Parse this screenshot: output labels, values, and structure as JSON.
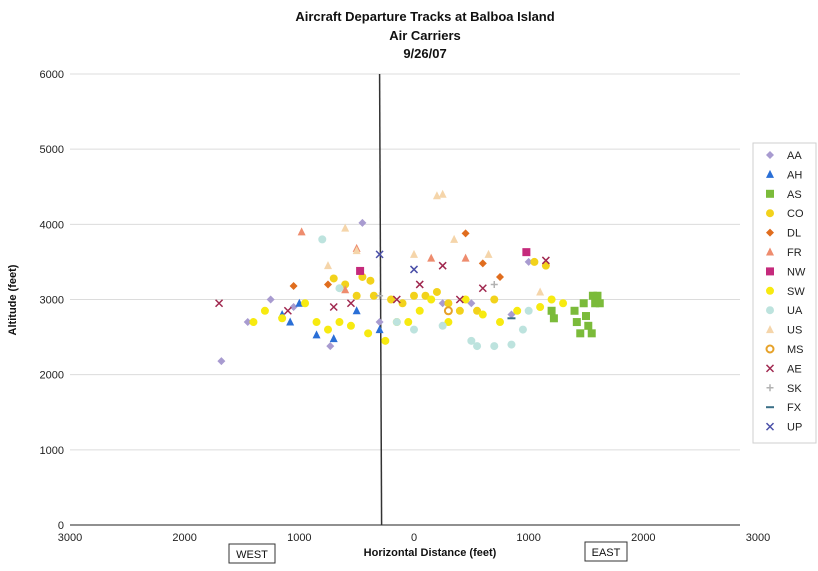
{
  "chart_data": {
    "type": "scatter",
    "title": "Aircraft Departure Tracks at Balboa Island",
    "subtitle": "Air Carriers",
    "date": "9/26/07",
    "xlabel": "Horizontal Distance (feet)",
    "ylabel": "Altitude (feet)",
    "xlim": [
      -3000,
      3000
    ],
    "ylim": [
      0,
      6000
    ],
    "x_ticks": [
      -3000,
      -2000,
      -1000,
      0,
      1000,
      2000,
      3000
    ],
    "x_tick_labels": [
      "3000",
      "2000",
      "1000",
      "0",
      "1000",
      "2000",
      "3000"
    ],
    "y_ticks": [
      0,
      1000,
      2000,
      3000,
      4000,
      5000,
      6000
    ],
    "y_tick_labels": [
      "0",
      "1000",
      "2000",
      "3000",
      "4000",
      "5000",
      "6000"
    ],
    "west_label": "WEST",
    "east_label": "EAST",
    "grid": "horizontal",
    "legend_position": "right",
    "series": [
      {
        "name": "AA",
        "marker": "diamond",
        "color": "#a89bd0",
        "points": [
          [
            -1680,
            2180
          ],
          [
            -1450,
            2700
          ],
          [
            -1250,
            3000
          ],
          [
            -1050,
            2900
          ],
          [
            -730,
            2380
          ],
          [
            -450,
            4020
          ],
          [
            -300,
            2700
          ],
          [
            250,
            2950
          ],
          [
            500,
            2950
          ],
          [
            850,
            2800
          ],
          [
            1000,
            3500
          ]
        ]
      },
      {
        "name": "AH",
        "marker": "triangle",
        "color": "#2a6fd6",
        "points": [
          [
            -1150,
            2800
          ],
          [
            -1080,
            2700
          ],
          [
            -1000,
            2950
          ],
          [
            -850,
            2530
          ],
          [
            -700,
            2480
          ],
          [
            -500,
            2850
          ],
          [
            -300,
            2600
          ]
        ]
      },
      {
        "name": "AS",
        "marker": "square",
        "color": "#7bbb3a",
        "points": [
          [
            1200,
            2850
          ],
          [
            1220,
            2750
          ],
          [
            1400,
            2850
          ],
          [
            1420,
            2700
          ],
          [
            1450,
            2550
          ],
          [
            1480,
            2950
          ],
          [
            1500,
            2780
          ],
          [
            1520,
            2650
          ],
          [
            1550,
            2550
          ],
          [
            1560,
            3050
          ],
          [
            1580,
            2950
          ],
          [
            1600,
            3050
          ],
          [
            1620,
            2950
          ]
        ]
      },
      {
        "name": "CO",
        "marker": "circle",
        "color": "#f2d21b",
        "points": [
          [
            -700,
            3280
          ],
          [
            -600,
            3200
          ],
          [
            -500,
            3050
          ],
          [
            -450,
            3300
          ],
          [
            -380,
            3250
          ],
          [
            -350,
            3050
          ],
          [
            -200,
            3000
          ],
          [
            -100,
            2950
          ],
          [
            0,
            3050
          ],
          [
            100,
            3050
          ],
          [
            200,
            3100
          ],
          [
            300,
            2950
          ],
          [
            400,
            2850
          ],
          [
            550,
            2850
          ],
          [
            700,
            3000
          ],
          [
            1050,
            3500
          ],
          [
            1150,
            3450
          ]
        ]
      },
      {
        "name": "DL",
        "marker": "diamond",
        "color": "#e06d1e",
        "points": [
          [
            -1050,
            3180
          ],
          [
            -750,
            3200
          ],
          [
            450,
            3880
          ],
          [
            600,
            3480
          ],
          [
            750,
            3300
          ]
        ]
      },
      {
        "name": "FR",
        "marker": "triangle",
        "color": "#ee8c6e",
        "points": [
          [
            -980,
            3900
          ],
          [
            -600,
            3130
          ],
          [
            -500,
            3680
          ],
          [
            150,
            3550
          ],
          [
            450,
            3550
          ]
        ]
      },
      {
        "name": "NW",
        "marker": "square",
        "color": "#c52a7c",
        "points": [
          [
            -470,
            3380
          ],
          [
            980,
            3630
          ]
        ]
      },
      {
        "name": "SW",
        "marker": "circle",
        "color": "#f7ea10",
        "points": [
          [
            -1400,
            2700
          ],
          [
            -1300,
            2850
          ],
          [
            -1150,
            2750
          ],
          [
            -950,
            2950
          ],
          [
            -850,
            2700
          ],
          [
            -750,
            2600
          ],
          [
            -650,
            2700
          ],
          [
            -550,
            2650
          ],
          [
            -400,
            2550
          ],
          [
            -250,
            2450
          ],
          [
            -150,
            2700
          ],
          [
            -50,
            2700
          ],
          [
            50,
            2850
          ],
          [
            150,
            3000
          ],
          [
            300,
            2700
          ],
          [
            450,
            3000
          ],
          [
            600,
            2800
          ],
          [
            750,
            2700
          ],
          [
            900,
            2850
          ],
          [
            1100,
            2900
          ],
          [
            1200,
            3000
          ],
          [
            1300,
            2950
          ]
        ]
      },
      {
        "name": "UA",
        "marker": "circle",
        "color": "#bde3de",
        "points": [
          [
            -800,
            3800
          ],
          [
            -650,
            3150
          ],
          [
            -150,
            2700
          ],
          [
            0,
            2600
          ],
          [
            250,
            2650
          ],
          [
            500,
            2450
          ],
          [
            550,
            2380
          ],
          [
            700,
            2380
          ],
          [
            850,
            2400
          ],
          [
            950,
            2600
          ],
          [
            1000,
            2850
          ]
        ]
      },
      {
        "name": "US",
        "marker": "triangle",
        "color": "#f5d5aa",
        "points": [
          [
            -750,
            3450
          ],
          [
            -600,
            3950
          ],
          [
            -500,
            3650
          ],
          [
            0,
            3600
          ],
          [
            200,
            4380
          ],
          [
            250,
            4400
          ],
          [
            350,
            3800
          ],
          [
            650,
            3600
          ],
          [
            1100,
            3100
          ]
        ]
      },
      {
        "name": "MS",
        "marker": "ring",
        "color": "#e6a22a",
        "points": [
          [
            300,
            2850
          ]
        ]
      },
      {
        "name": "AE",
        "marker": "x",
        "color": "#a0284f",
        "points": [
          [
            -1700,
            2950
          ],
          [
            -1100,
            2850
          ],
          [
            -700,
            2900
          ],
          [
            -550,
            2950
          ],
          [
            -150,
            3000
          ],
          [
            50,
            3200
          ],
          [
            250,
            3450
          ],
          [
            400,
            3000
          ],
          [
            600,
            3150
          ],
          [
            1150,
            3520
          ]
        ]
      },
      {
        "name": "SK",
        "marker": "plus",
        "color": "#b2b2b2",
        "points": [
          [
            -300,
            3050
          ],
          [
            700,
            3200
          ]
        ]
      },
      {
        "name": "FX",
        "marker": "dash",
        "color": "#3a6f87",
        "points": [
          [
            850,
            2750
          ]
        ]
      },
      {
        "name": "UP",
        "marker": "x",
        "color": "#4a4fa8",
        "points": [
          [
            -300,
            3600
          ],
          [
            0,
            3400
          ]
        ]
      }
    ]
  }
}
